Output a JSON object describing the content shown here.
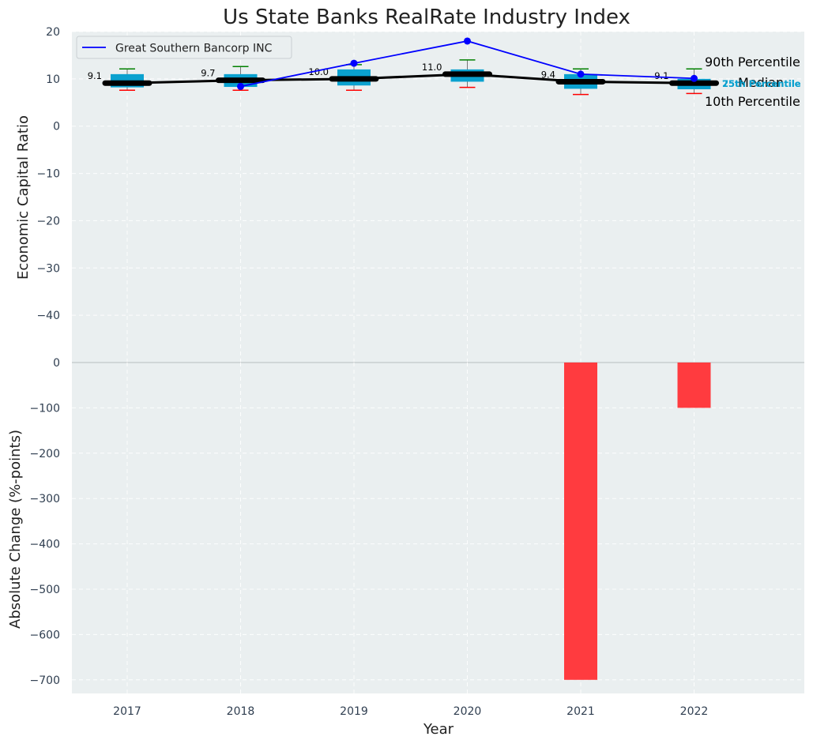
{
  "chart_data": {
    "type": "box",
    "title": "Us State Banks RealRate Industry Index",
    "xlabel": "Year",
    "categories": [
      "2017",
      "2018",
      "2019",
      "2020",
      "2021",
      "2022"
    ],
    "top_panel": {
      "ylabel": "Economic Capital Ratio",
      "ylim": [
        -50,
        20
      ],
      "yticks": [
        20,
        10,
        0,
        -10,
        -20,
        -30,
        -40
      ],
      "p10": [
        7.6,
        7.6,
        7.6,
        8.2,
        6.7,
        6.9
      ],
      "p25": [
        8.2,
        8.3,
        8.6,
        9.4,
        7.9,
        7.8
      ],
      "median": [
        9.1,
        9.7,
        10.0,
        11.0,
        9.4,
        9.1
      ],
      "p75": [
        11.0,
        11.0,
        12.0,
        12.0,
        11.0,
        10.0
      ],
      "p90": [
        12.1,
        12.6,
        13.0,
        14.0,
        12.1,
        12.1
      ],
      "median_labels": [
        "9.1",
        "9.7",
        "10.0",
        "11.0",
        "9.4",
        "9.1"
      ],
      "series": [
        {
          "name": "Great Southern Bancorp INC",
          "values": [
            null,
            8.4,
            13.3,
            18.0,
            11.0,
            10.1
          ],
          "color": "#0000ff"
        }
      ],
      "annotations": {
        "p90": "90th Percentile",
        "median": "Median",
        "p10": "10th Percentile",
        "p75": "75th Percentile",
        "p25": "25th Percentile"
      }
    },
    "bottom_panel": {
      "ylabel": "Absolute Change (%-points)",
      "type": "bar",
      "ylim": [
        -730,
        0
      ],
      "yticks": [
        0,
        -100,
        -200,
        -300,
        -400,
        -500,
        -600,
        -700
      ],
      "values": [
        null,
        null,
        null,
        null,
        -700,
        -100
      ],
      "color": "#ff3b3f"
    },
    "colors": {
      "background": "#eaeff0",
      "box": "#0aa1cf",
      "median_line": "#000000",
      "whisker_top": "#008000",
      "whisker_bottom": "#ff0000",
      "pct_label": "#0aa1cf"
    }
  }
}
